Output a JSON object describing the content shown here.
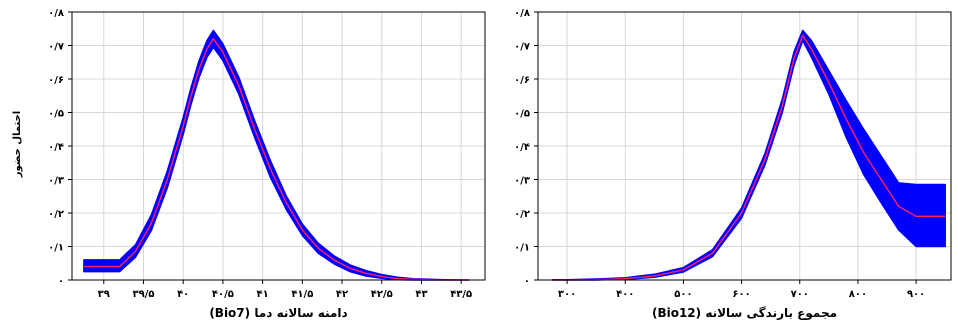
{
  "y_axis_label": "احتمال حضور",
  "chart_data": [
    {
      "type": "line",
      "xlabel": "دامنه سالانه دما (Bio7)",
      "ylabel": "احتمال حضور",
      "xlim": [
        38.6,
        43.8
      ],
      "ylim": [
        0,
        0.8
      ],
      "x_ticks": [
        39,
        39.5,
        40,
        40.5,
        41,
        41.5,
        42,
        42.5,
        43,
        43.5
      ],
      "x_tick_labels": [
        "۳۹",
        "۳۹/۵",
        "۴۰",
        "۴۰/۵",
        "۴۱",
        "۴۱/۵",
        "۴۲",
        "۴۲/۵",
        "۴۳",
        "۴۳/۵"
      ],
      "y_ticks": [
        0,
        0.1,
        0.2,
        0.3,
        0.4,
        0.5,
        0.6,
        0.7,
        0.8
      ],
      "y_tick_labels": [
        "۰",
        "۰/۱",
        "۰/۲",
        "۰/۳",
        "۰/۴",
        "۰/۵",
        "۰/۶",
        "۰/۷",
        "۰/۸"
      ],
      "grid": true,
      "series": [
        {
          "role": "mean",
          "color": "#ff2060",
          "x": [
            38.75,
            39.0,
            39.2,
            39.4,
            39.6,
            39.8,
            40.0,
            40.1,
            40.2,
            40.3,
            40.38,
            40.5,
            40.7,
            40.9,
            41.1,
            41.3,
            41.5,
            41.7,
            41.9,
            42.1,
            42.3,
            42.5,
            42.7,
            42.9,
            43.1,
            43.3,
            43.5,
            43.6
          ],
          "y": [
            0.04,
            0.04,
            0.04,
            0.085,
            0.17,
            0.3,
            0.46,
            0.55,
            0.63,
            0.69,
            0.72,
            0.68,
            0.58,
            0.45,
            0.33,
            0.23,
            0.15,
            0.095,
            0.06,
            0.035,
            0.02,
            0.01,
            0.004,
            0.002,
            0.001,
            0.0,
            0.0,
            0.0
          ]
        },
        {
          "role": "upper",
          "color": "#0000ff",
          "x": [
            38.75,
            39.0,
            39.2,
            39.4,
            39.6,
            39.8,
            40.0,
            40.1,
            40.2,
            40.3,
            40.38,
            40.5,
            40.7,
            40.9,
            41.1,
            41.3,
            41.5,
            41.7,
            41.9,
            42.1,
            42.3,
            42.5,
            42.7,
            42.9,
            43.1,
            43.3,
            43.5,
            43.6
          ],
          "y": [
            0.06,
            0.06,
            0.06,
            0.105,
            0.195,
            0.325,
            0.485,
            0.575,
            0.655,
            0.715,
            0.745,
            0.705,
            0.605,
            0.475,
            0.355,
            0.25,
            0.167,
            0.11,
            0.072,
            0.045,
            0.028,
            0.016,
            0.008,
            0.004,
            0.002,
            0.001,
            0.0,
            0.0
          ]
        },
        {
          "role": "lower",
          "color": "#0000ff",
          "x": [
            38.75,
            39.0,
            39.2,
            39.4,
            39.6,
            39.8,
            40.0,
            40.1,
            40.2,
            40.3,
            40.38,
            40.5,
            40.7,
            40.9,
            41.1,
            41.3,
            41.5,
            41.7,
            41.9,
            42.1,
            42.3,
            42.5,
            42.7,
            42.9,
            43.1,
            43.3,
            43.5,
            43.6
          ],
          "y": [
            0.025,
            0.025,
            0.025,
            0.068,
            0.148,
            0.275,
            0.435,
            0.525,
            0.605,
            0.665,
            0.695,
            0.655,
            0.555,
            0.425,
            0.305,
            0.21,
            0.133,
            0.08,
            0.048,
            0.025,
            0.012,
            0.005,
            0.001,
            0.0,
            0.0,
            0.0,
            0.0,
            0.0
          ]
        }
      ]
    },
    {
      "type": "line",
      "xlabel": "مجموع بارندگی سالانه (Bio12)",
      "ylabel": "",
      "xlim": [
        250,
        960
      ],
      "ylim": [
        0,
        0.8
      ],
      "x_ticks": [
        300,
        400,
        500,
        600,
        700,
        800,
        900
      ],
      "x_tick_labels": [
        "۳۰۰",
        "۴۰۰",
        "۵۰۰",
        "۶۰۰",
        "۷۰۰",
        "۸۰۰",
        "۹۰۰"
      ],
      "y_ticks": [
        0,
        0.1,
        0.2,
        0.3,
        0.4,
        0.5,
        0.6,
        0.7,
        0.8
      ],
      "y_tick_labels": [
        "۰",
        "۰/۱",
        "۰/۲",
        "۰/۳",
        "۰/۴",
        "۰/۵",
        "۰/۶",
        "۰/۷",
        "۰/۸"
      ],
      "grid": true,
      "series": [
        {
          "role": "mean",
          "color": "#ff2060",
          "x": [
            275,
            300,
            350,
            400,
            450,
            500,
            550,
            600,
            640,
            670,
            690,
            705,
            720,
            750,
            780,
            810,
            840,
            870,
            900,
            950
          ],
          "y": [
            0.0,
            0.0,
            0.001,
            0.004,
            0.012,
            0.03,
            0.08,
            0.2,
            0.36,
            0.52,
            0.66,
            0.73,
            0.69,
            0.59,
            0.48,
            0.38,
            0.3,
            0.22,
            0.19,
            0.19
          ]
        },
        {
          "role": "upper",
          "color": "#0000ff",
          "x": [
            275,
            300,
            350,
            400,
            450,
            500,
            550,
            600,
            640,
            670,
            690,
            705,
            720,
            750,
            780,
            810,
            840,
            870,
            900,
            950
          ],
          "y": [
            0.001,
            0.001,
            0.003,
            0.007,
            0.017,
            0.037,
            0.09,
            0.215,
            0.377,
            0.54,
            0.68,
            0.745,
            0.715,
            0.625,
            0.535,
            0.45,
            0.37,
            0.29,
            0.285,
            0.285
          ]
        },
        {
          "role": "lower",
          "color": "#0000ff",
          "x": [
            275,
            300,
            350,
            400,
            450,
            500,
            550,
            600,
            640,
            670,
            690,
            705,
            720,
            750,
            780,
            810,
            840,
            870,
            900,
            950
          ],
          "y": [
            0.0,
            0.0,
            0.0,
            0.002,
            0.008,
            0.024,
            0.07,
            0.185,
            0.343,
            0.5,
            0.64,
            0.715,
            0.665,
            0.555,
            0.425,
            0.315,
            0.23,
            0.15,
            0.1,
            0.1
          ]
        }
      ]
    }
  ]
}
